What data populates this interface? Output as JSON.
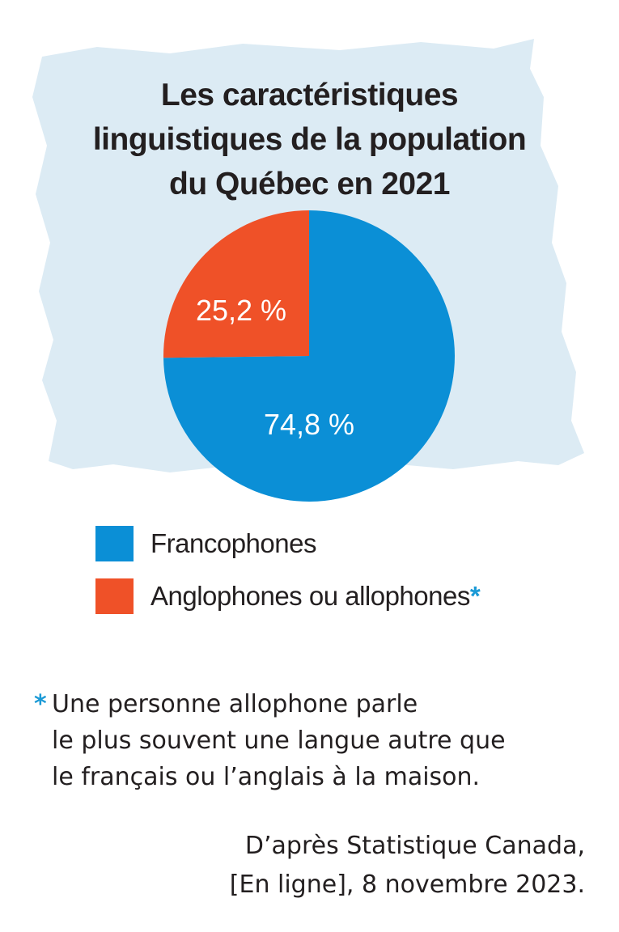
{
  "colors": {
    "background_brush": "#dcebf4",
    "francophones": "#0b8fd6",
    "anglophones_allophones": "#ef5128",
    "asterisk": "#1b9ad6",
    "text": "#231f20"
  },
  "chart_data": {
    "type": "pie",
    "title_lines": [
      "Les caractéristiques",
      "linguistiques de la population",
      "du Québec en 2021"
    ],
    "slices": [
      {
        "name": "Francophones",
        "value": 74.8,
        "label": "74,8 %",
        "color": "#0b8fd6"
      },
      {
        "name": "Anglophones ou allophones",
        "value": 25.2,
        "label": "25,2 %",
        "color": "#ef5128"
      }
    ],
    "legend": [
      {
        "label": "Francophones",
        "asterisk": ""
      },
      {
        "label": "Anglophones ou allophones",
        "asterisk": "*"
      }
    ]
  },
  "footnote": {
    "marker": "*",
    "lines": [
      "Une personne allophone parle",
      "le plus souvent une langue autre que",
      "le français ou l’anglais à la maison."
    ]
  },
  "source": {
    "lines": [
      "D’après Statistique Canada,",
      "[En ligne], 8 novembre 2023."
    ]
  }
}
